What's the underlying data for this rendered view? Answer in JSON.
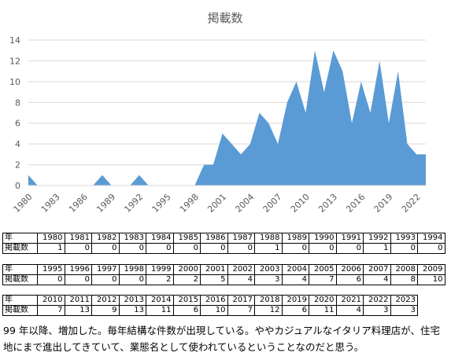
{
  "chart_data": {
    "type": "area",
    "title": "掲載数",
    "x": [
      1980,
      1981,
      1982,
      1983,
      1984,
      1985,
      1986,
      1987,
      1988,
      1989,
      1990,
      1991,
      1992,
      1993,
      1994,
      1995,
      1996,
      1997,
      1998,
      1999,
      2000,
      2001,
      2002,
      2003,
      2004,
      2005,
      2006,
      2007,
      2008,
      2009,
      2010,
      2011,
      2012,
      2013,
      2014,
      2015,
      2016,
      2017,
      2018,
      2019,
      2020,
      2021,
      2022,
      2023
    ],
    "values": [
      1,
      0,
      0,
      0,
      0,
      0,
      0,
      0,
      1,
      0,
      0,
      0,
      1,
      0,
      0,
      0,
      0,
      0,
      0,
      2,
      2,
      5,
      4,
      3,
      4,
      7,
      6,
      4,
      8,
      10,
      7,
      13,
      9,
      13,
      11,
      6,
      10,
      7,
      12,
      6,
      11,
      4,
      3,
      3
    ],
    "x_ticks": [
      1980,
      1983,
      1986,
      1989,
      1992,
      1995,
      1998,
      2001,
      2004,
      2007,
      2010,
      2013,
      2016,
      2019,
      2022
    ],
    "ylim": [
      0,
      14
    ],
    "y_ticks": [
      0,
      2,
      4,
      6,
      8,
      10,
      12,
      14
    ],
    "grid": true,
    "color": "#5b9bd5"
  },
  "tables": [
    {
      "header": "年",
      "label": "掲載数",
      "years": [
        "1980",
        "1981",
        "1982",
        "1983",
        "1984",
        "1985",
        "1986",
        "1987",
        "1988",
        "1989",
        "1990",
        "1991",
        "1992",
        "1993",
        "1994"
      ],
      "counts": [
        "1",
        "0",
        "0",
        "0",
        "0",
        "0",
        "0",
        "0",
        "1",
        "0",
        "0",
        "0",
        "1",
        "0",
        "0"
      ]
    },
    {
      "header": "年",
      "label": "掲載数",
      "years": [
        "1995",
        "1996",
        "1997",
        "1998",
        "1999",
        "2000",
        "2001",
        "2002",
        "2003",
        "2004",
        "2005",
        "2006",
        "2007",
        "2008",
        "2009"
      ],
      "counts": [
        "0",
        "0",
        "0",
        "0",
        "2",
        "2",
        "5",
        "4",
        "3",
        "4",
        "7",
        "6",
        "4",
        "8",
        "10"
      ]
    },
    {
      "header": "年",
      "label": "掲載数",
      "years": [
        "2010",
        "2011",
        "2012",
        "2013",
        "2014",
        "2015",
        "2016",
        "2017",
        "2018",
        "2019",
        "2020",
        "2021",
        "2022",
        "2023"
      ],
      "counts": [
        "7",
        "13",
        "9",
        "13",
        "11",
        "6",
        "10",
        "7",
        "12",
        "6",
        "11",
        "4",
        "3",
        "3"
      ]
    }
  ],
  "caption": "99 年以降、増加した。毎年結構な件数が出現している。ややカジュアルなイタリア料理店が、住宅地にまで進出してきていて、業態名として使われているということなのだと思う。"
}
